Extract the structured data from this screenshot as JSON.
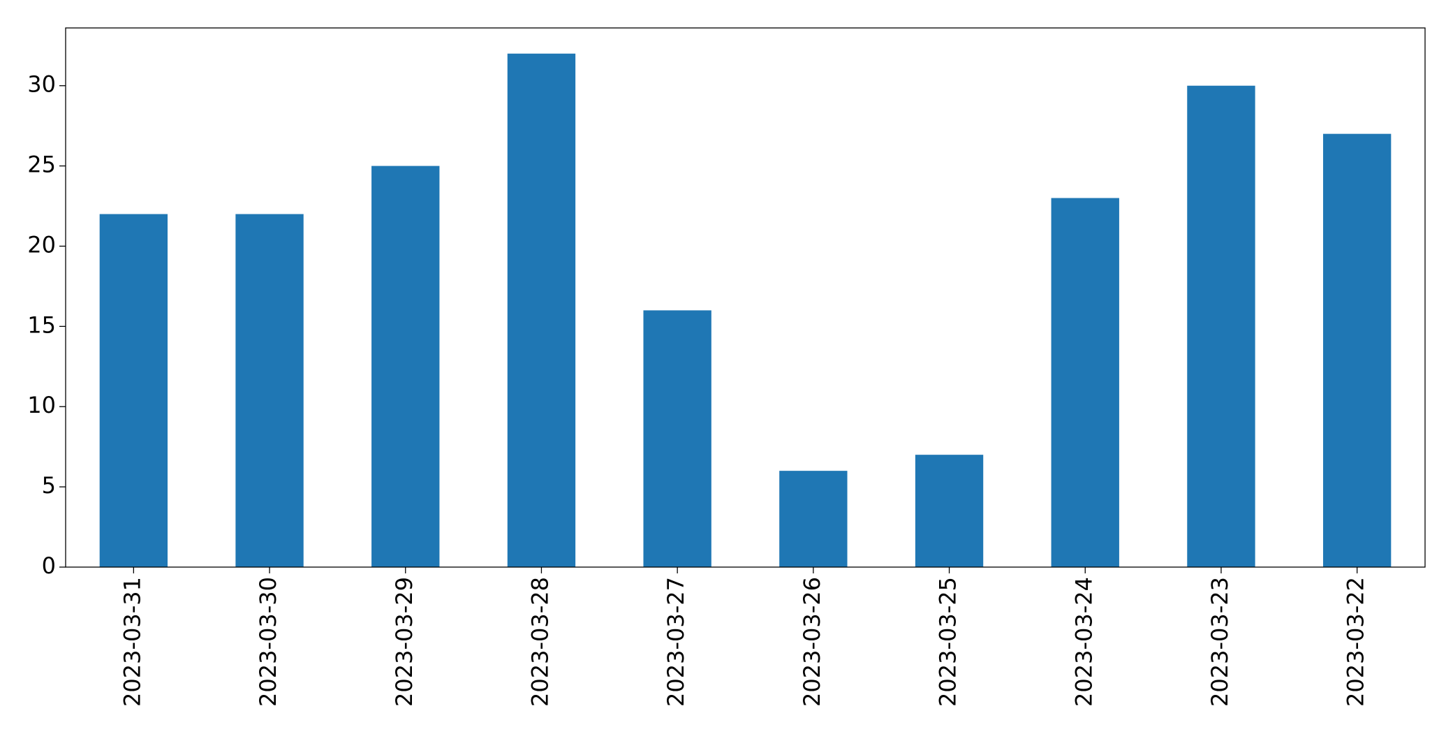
{
  "chart_data": {
    "type": "bar",
    "categories": [
      "2023-03-31",
      "2023-03-30",
      "2023-03-29",
      "2023-03-28",
      "2023-03-27",
      "2023-03-26",
      "2023-03-25",
      "2023-03-24",
      "2023-03-23",
      "2023-03-22"
    ],
    "values": [
      22,
      22,
      25,
      32,
      16,
      6,
      7,
      23,
      30,
      27
    ],
    "color": "#1f77b4",
    "ylim": [
      0,
      33.6
    ],
    "yticks": [
      0,
      5,
      10,
      15,
      20,
      25,
      30
    ],
    "grid": false
  }
}
